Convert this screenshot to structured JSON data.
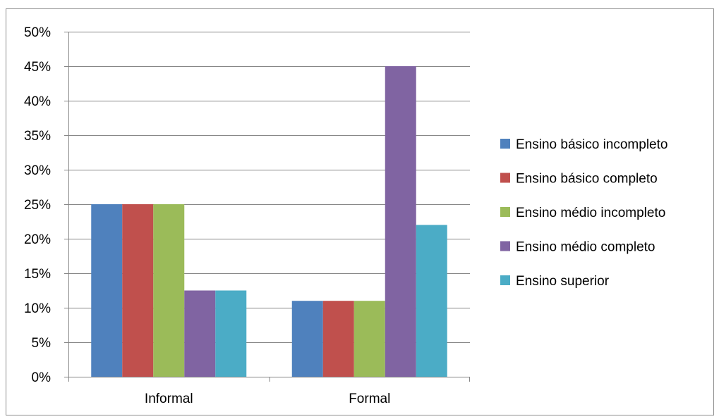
{
  "chart_data": {
    "type": "bar",
    "title": "",
    "xlabel": "",
    "ylabel": "",
    "categories": [
      "Informal",
      "Formal"
    ],
    "ylim": [
      0,
      50
    ],
    "yticks": [
      0,
      5,
      10,
      15,
      20,
      25,
      30,
      35,
      40,
      45,
      50
    ],
    "ytick_labels": [
      "0%",
      "5%",
      "10%",
      "15%",
      "20%",
      "25%",
      "30%",
      "35%",
      "40%",
      "45%",
      "50%"
    ],
    "grid": true,
    "legend_position": "right",
    "series": [
      {
        "name": "Ensino básico incompleto",
        "values": [
          25,
          11
        ],
        "color": "#4F81BD"
      },
      {
        "name": "Ensino básico completo",
        "values": [
          25,
          11
        ],
        "color": "#C0504D"
      },
      {
        "name": "Ensino médio incompleto",
        "values": [
          25,
          11
        ],
        "color": "#9BBB59"
      },
      {
        "name": "Ensino médio completo",
        "values": [
          12.5,
          45
        ],
        "color": "#8064A2"
      },
      {
        "name": "Ensino superior",
        "values": [
          12.5,
          22
        ],
        "color": "#4BACC6"
      }
    ]
  }
}
